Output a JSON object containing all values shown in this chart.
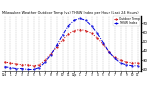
{
  "title": "Milwaukee Weather Outdoor Temp (vs) THSW Index per Hour (Last 24 Hours)",
  "red_x": [
    0,
    1,
    2,
    3,
    4,
    5,
    6,
    7,
    8,
    9,
    10,
    11,
    12,
    13,
    14,
    15,
    16,
    17,
    18,
    19,
    20,
    21,
    22,
    23
  ],
  "red_y": [
    28,
    27,
    26,
    25,
    25,
    24,
    25,
    30,
    37,
    44,
    52,
    58,
    62,
    63,
    62,
    59,
    54,
    47,
    39,
    33,
    30,
    28,
    27,
    27
  ],
  "blue_x": [
    0,
    1,
    2,
    3,
    4,
    5,
    6,
    7,
    8,
    9,
    10,
    11,
    12,
    13,
    14,
    15,
    16,
    17,
    18,
    19,
    20,
    21,
    22,
    23
  ],
  "blue_y": [
    23,
    22,
    21,
    21,
    20,
    20,
    22,
    28,
    36,
    46,
    57,
    67,
    73,
    75,
    73,
    67,
    59,
    49,
    39,
    32,
    27,
    25,
    24,
    24
  ],
  "red_color": "#cc0000",
  "blue_color": "#0000dd",
  "bg_color": "#ffffff",
  "plot_bg": "#ffffff",
  "ylim": [
    18,
    78
  ],
  "xlim": [
    -0.5,
    23.5
  ],
  "yticks": [
    20,
    30,
    40,
    50,
    60,
    70
  ],
  "xtick_labels": [
    "12a",
    "1",
    "2",
    "3",
    "4",
    "5",
    "6",
    "7",
    "8",
    "9",
    "10",
    "11",
    "12p",
    "1",
    "2",
    "3",
    "4",
    "5",
    "6",
    "7",
    "8",
    "9",
    "10",
    "11"
  ],
  "legend_temp": "Outdoor Temp",
  "legend_thsw": "THSW Index",
  "grid_color": "#888888"
}
